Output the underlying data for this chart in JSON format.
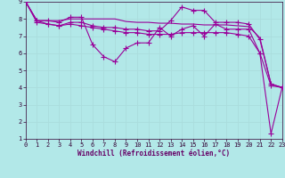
{
  "xlabel": "Windchill (Refroidissement éolien,°C)",
  "bg_color": "#b2e8e8",
  "line_color": "#990099",
  "grid_color": "#aadddd",
  "xlim": [
    0,
    23
  ],
  "ylim": [
    1,
    9
  ],
  "xticks": [
    0,
    1,
    2,
    3,
    4,
    5,
    6,
    7,
    8,
    9,
    10,
    11,
    12,
    13,
    14,
    15,
    16,
    17,
    18,
    19,
    20,
    21,
    22,
    23
  ],
  "yticks": [
    1,
    2,
    3,
    4,
    5,
    6,
    7,
    8,
    9
  ],
  "lines": [
    {
      "x": [
        0,
        1,
        2,
        3,
        4,
        5,
        6,
        7,
        8,
        9,
        10,
        11,
        12,
        13,
        14,
        15,
        16,
        17,
        18,
        19,
        20,
        21,
        22,
        23
      ],
      "y": [
        9.0,
        7.9,
        7.9,
        7.8,
        8.1,
        8.1,
        6.5,
        5.8,
        5.5,
        6.3,
        6.6,
        6.6,
        7.5,
        7.0,
        7.4,
        7.6,
        7.0,
        7.7,
        7.4,
        7.4,
        7.4,
        6.0,
        4.1,
        4.0
      ],
      "marker": true
    },
    {
      "x": [
        0,
        1,
        2,
        3,
        4,
        5,
        6,
        7,
        8,
        9,
        10,
        11,
        12,
        13,
        14,
        15,
        16,
        17,
        18,
        19,
        20,
        21,
        22,
        23
      ],
      "y": [
        9.0,
        7.9,
        7.9,
        7.9,
        8.0,
        8.0,
        8.0,
        8.0,
        8.0,
        7.85,
        7.8,
        7.8,
        7.75,
        7.75,
        7.7,
        7.7,
        7.65,
        7.65,
        7.65,
        7.6,
        7.55,
        6.9,
        4.2,
        4.0
      ],
      "marker": false
    },
    {
      "x": [
        0,
        1,
        2,
        3,
        4,
        5,
        6,
        7,
        8,
        9,
        10,
        11,
        12,
        13,
        14,
        15,
        16,
        17,
        18,
        19,
        20,
        21,
        22,
        23
      ],
      "y": [
        9.0,
        7.9,
        7.7,
        7.6,
        7.8,
        7.8,
        7.6,
        7.5,
        7.5,
        7.4,
        7.4,
        7.3,
        7.3,
        7.9,
        8.7,
        8.5,
        8.5,
        7.8,
        7.8,
        7.8,
        7.7,
        6.8,
        4.2,
        4.0
      ],
      "marker": true
    },
    {
      "x": [
        0,
        1,
        2,
        3,
        4,
        5,
        6,
        7,
        8,
        9,
        10,
        11,
        12,
        13,
        14,
        15,
        16,
        17,
        18,
        19,
        20,
        21,
        22,
        23
      ],
      "y": [
        9.0,
        7.8,
        7.7,
        7.6,
        7.7,
        7.6,
        7.5,
        7.4,
        7.3,
        7.2,
        7.2,
        7.1,
        7.1,
        7.1,
        7.2,
        7.2,
        7.2,
        7.2,
        7.2,
        7.1,
        7.0,
        6.0,
        1.3,
        4.0
      ],
      "marker": true
    }
  ]
}
